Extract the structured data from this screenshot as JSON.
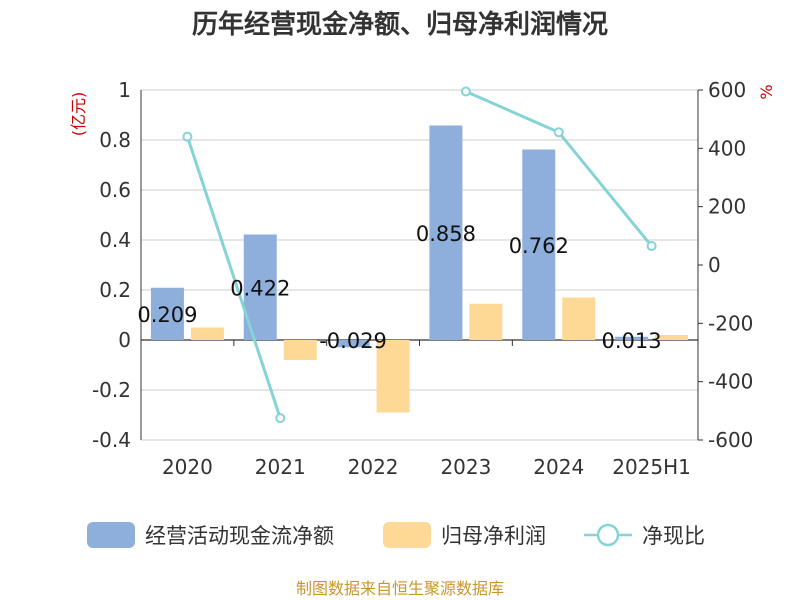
{
  "chart_data": {
    "type": "bar",
    "title": "历年经营现金净额、归母净利润情况",
    "categories": [
      "2020",
      "2021",
      "2022",
      "2023",
      "2024",
      "2025H1"
    ],
    "series": [
      {
        "name": "经营活动现金流净额",
        "type": "bar",
        "axis": "left",
        "color": "#8eaedb",
        "values": [
          0.209,
          0.422,
          -0.029,
          0.858,
          0.762,
          0.013
        ],
        "labels": [
          "0.209",
          "0.422",
          "-0.029",
          "0.858",
          "0.762",
          "0.013"
        ]
      },
      {
        "name": "归母净利润",
        "type": "bar",
        "axis": "left",
        "color": "#fed895",
        "values": [
          0.05,
          -0.08,
          -0.29,
          0.145,
          0.17,
          0.02
        ]
      },
      {
        "name": "净现比",
        "type": "line",
        "axis": "right",
        "color": "#86d3d6",
        "values": [
          440,
          -525,
          null,
          595,
          455,
          65
        ]
      }
    ],
    "y_left": {
      "unit": "(亿元)",
      "min": -0.4,
      "max": 1,
      "ticks": [
        "-0.4",
        "-0.2",
        "0",
        "0.2",
        "0.4",
        "0.6",
        "0.8",
        "1"
      ]
    },
    "y_right": {
      "unit": "%",
      "min": -600,
      "max": 600,
      "ticks": [
        "-600",
        "-400",
        "-200",
        "0",
        "200",
        "400",
        "600"
      ]
    },
    "grid": true,
    "legend_position": "bottom",
    "source": "制图数据来自恒生聚源数据库"
  }
}
